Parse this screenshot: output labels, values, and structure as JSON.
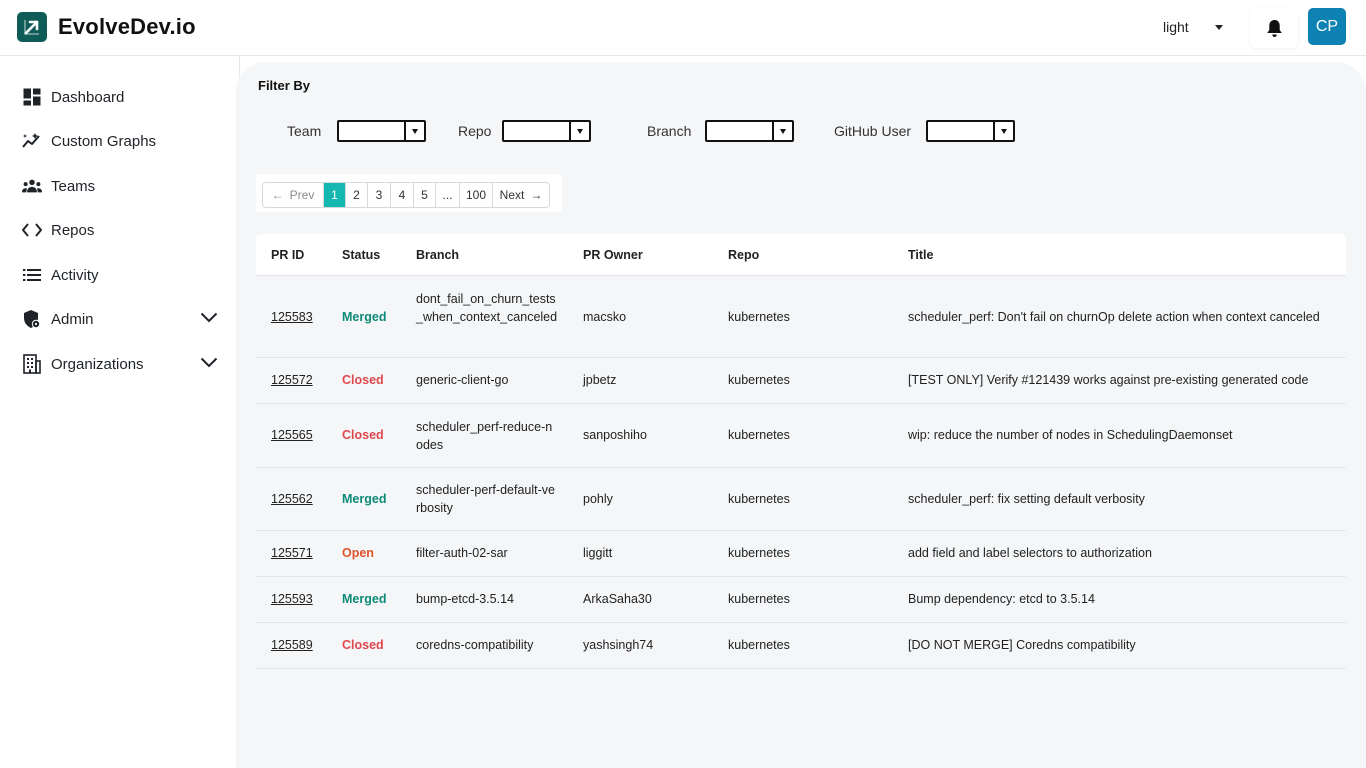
{
  "app": {
    "name": "EvolveDev.io"
  },
  "header": {
    "theme_value": "light",
    "avatar_initials": "CP"
  },
  "sidebar": {
    "items": [
      {
        "label": "Dashboard",
        "icon": "dashboard-icon"
      },
      {
        "label": "Custom Graphs",
        "icon": "graph-icon"
      },
      {
        "label": "Teams",
        "icon": "teams-icon"
      },
      {
        "label": "Repos",
        "icon": "code-icon"
      },
      {
        "label": "Activity",
        "icon": "list-icon"
      },
      {
        "label": "Admin",
        "icon": "admin-shield-icon",
        "expandable": true
      },
      {
        "label": "Organizations",
        "icon": "building-icon",
        "expandable": true
      }
    ]
  },
  "filters": {
    "title": "Filter By",
    "team_label": "Team",
    "repo_label": "Repo",
    "branch_label": "Branch",
    "github_user_label": "GitHub User"
  },
  "pagination": {
    "prev": "Prev",
    "next": "Next",
    "pages": [
      "1",
      "2",
      "3",
      "4",
      "5",
      "...",
      "100"
    ],
    "current": "1"
  },
  "table": {
    "headers": {
      "pr_id": "PR ID",
      "status": "Status",
      "branch": "Branch",
      "owner": "PR Owner",
      "repo": "Repo",
      "title": "Title"
    },
    "rows": [
      {
        "id": "125583",
        "status": "Merged",
        "branch": "dont_fail_on_churn_tests_when_context_canceled",
        "owner": "macsko",
        "repo": "kubernetes",
        "title": "scheduler_perf: Don't fail on churnOp delete action when context canceled"
      },
      {
        "id": "125572",
        "status": "Closed",
        "branch": "generic-client-go",
        "owner": "jpbetz",
        "repo": "kubernetes",
        "title": "[TEST ONLY] Verify #121439 works against pre-existing generated code"
      },
      {
        "id": "125565",
        "status": "Closed",
        "branch": "scheduler_perf-reduce-nodes",
        "owner": "sanposhiho",
        "repo": "kubernetes",
        "title": "wip: reduce the number of nodes in SchedulingDaemonset"
      },
      {
        "id": "125562",
        "status": "Merged",
        "branch": "scheduler-perf-default-verbosity",
        "owner": "pohly",
        "repo": "kubernetes",
        "title": "scheduler_perf: fix setting default verbosity"
      },
      {
        "id": "125571",
        "status": "Open",
        "branch": "filter-auth-02-sar",
        "owner": "liggitt",
        "repo": "kubernetes",
        "title": "add field and label selectors to authorization"
      },
      {
        "id": "125593",
        "status": "Merged",
        "branch": "bump-etcd-3.5.14",
        "owner": "ArkaSaha30",
        "repo": "kubernetes",
        "title": "Bump dependency: etcd to 3.5.14"
      },
      {
        "id": "125589",
        "status": "Closed",
        "branch": "coredns-compatibility",
        "owner": "yashsingh74",
        "repo": "kubernetes",
        "title": "[DO NOT MERGE] Coredns compatibility"
      }
    ]
  }
}
